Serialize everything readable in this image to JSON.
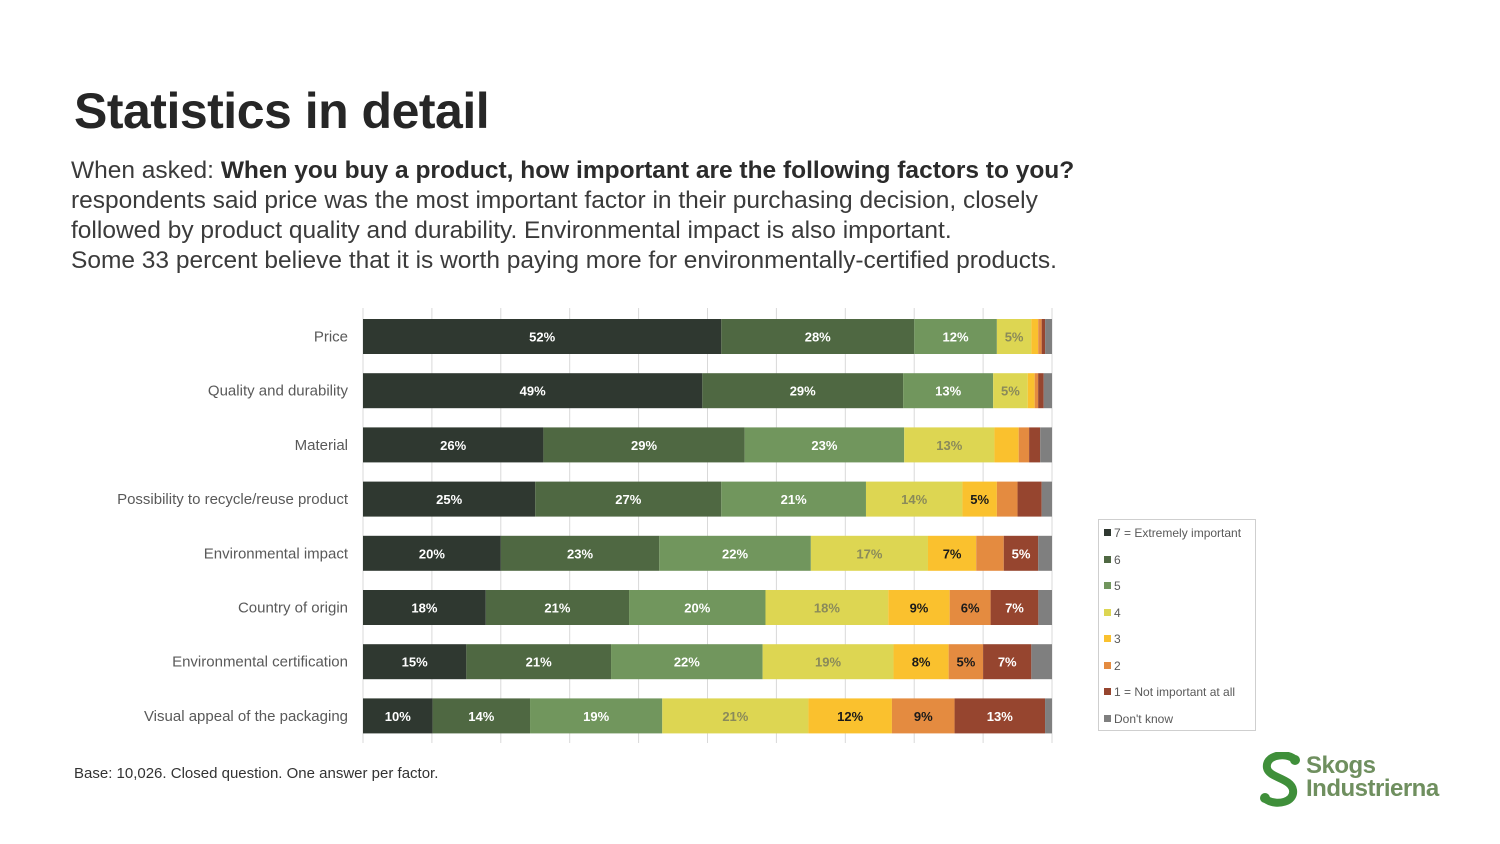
{
  "page": {
    "title": "Statistics in detail",
    "intro_prefix": "When asked: ",
    "intro_question": "When you buy a product, how important are the following factors to you?",
    "intro_line2": "respondents said price was the most important factor in their purchasing decision, closely",
    "intro_line3": "followed by product quality and durability. Environmental impact is also important.",
    "intro_line4": "Some 33 percent believe that it is worth paying more for environmentally-certified products.",
    "base_note": "Base: 10,026. Closed question. One answer per factor.",
    "logo_line1": "Skogs",
    "logo_line2": "Industrierna"
  },
  "chart_data": {
    "type": "bar",
    "orientation": "horizontal",
    "stacked": "percent",
    "legend_position": "right",
    "grid": true,
    "categories": [
      "Price",
      "Quality and durability",
      "Material",
      "Possibility to recycle/reuse product",
      "Environmental impact",
      "Country of origin",
      "Environmental certification",
      "Visual appeal of the packaging"
    ],
    "series": [
      {
        "name": "7 = Extremely important",
        "color": "#2f3830",
        "label_color": "#ffffff",
        "values": [
          52,
          49,
          26,
          25,
          20,
          18,
          15,
          10
        ],
        "labels": [
          "52%",
          "49%",
          "26%",
          "25%",
          "20%",
          "18%",
          "15%",
          "10%"
        ]
      },
      {
        "name": "6",
        "color": "#4f6842",
        "label_color": "#ffffff",
        "values": [
          28,
          29,
          29,
          27,
          23,
          21,
          21,
          14
        ],
        "labels": [
          "28%",
          "29%",
          "29%",
          "27%",
          "23%",
          "21%",
          "21%",
          "14%"
        ]
      },
      {
        "name": "5",
        "color": "#71965d",
        "label_color": "#ffffff",
        "values": [
          12,
          13,
          23,
          21,
          22,
          20,
          22,
          19
        ],
        "labels": [
          "12%",
          "13%",
          "23%",
          "21%",
          "22%",
          "20%",
          "22%",
          "19%"
        ]
      },
      {
        "name": "4",
        "color": "#ddd652",
        "label_color": "#8a8a5a",
        "values": [
          5,
          5,
          13,
          14,
          17,
          18,
          19,
          21
        ],
        "labels": [
          "5%",
          "5%",
          "13%",
          "14%",
          "17%",
          "18%",
          "19%",
          "21%"
        ]
      },
      {
        "name": "3",
        "color": "#fac12e",
        "label_color": "#1a1a1a",
        "values": [
          1,
          1,
          3.5,
          5,
          7,
          9,
          8,
          12
        ],
        "labels": [
          "",
          "",
          "",
          "5%",
          "7%",
          "9%",
          "8%",
          "12%"
        ]
      },
      {
        "name": "2",
        "color": "#e48b40",
        "label_color": "#1a1a1a",
        "values": [
          0.5,
          0.5,
          1.5,
          3,
          4,
          6,
          5,
          9
        ],
        "labels": [
          "",
          "",
          "",
          "",
          "",
          "6%",
          "5%",
          "9%"
        ]
      },
      {
        "name": "1 = Not important at all",
        "color": "#96452f",
        "label_color": "#ffffff",
        "values": [
          0.5,
          0.8,
          1.6,
          3.5,
          5,
          7,
          7,
          13
        ],
        "labels": [
          "",
          "",
          "",
          "",
          "5%",
          "7%",
          "7%",
          "13%"
        ]
      },
      {
        "name": "Don't know",
        "color": "#7f7f7f",
        "label_color": "#ffffff",
        "values": [
          1,
          1.2,
          1.7,
          1.5,
          2,
          2,
          3,
          1
        ],
        "labels": [
          "",
          "",
          "",
          "",
          "",
          "",
          "",
          ""
        ]
      }
    ]
  }
}
